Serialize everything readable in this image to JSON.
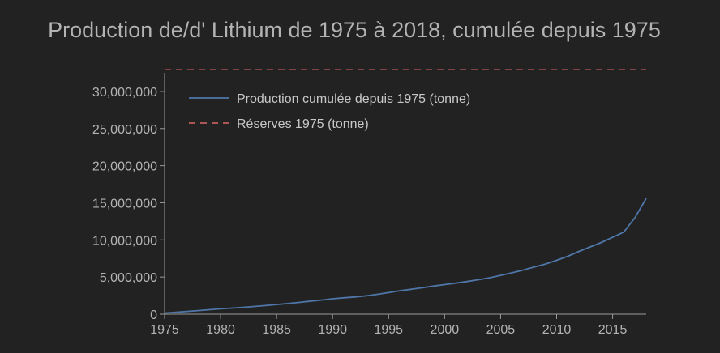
{
  "chart_data": {
    "type": "line",
    "title": "Production de/d' Lithium de 1975 à 2018, cumulée depuis 1975",
    "xlabel": "",
    "ylabel": "",
    "xlim": [
      1975,
      2018
    ],
    "ylim": [
      0,
      32500000
    ],
    "x_ticks": [
      1975,
      1980,
      1985,
      1990,
      1995,
      2000,
      2005,
      2010,
      2015
    ],
    "y_ticks": [
      0,
      5000000,
      10000000,
      15000000,
      20000000,
      25000000,
      30000000
    ],
    "y_tick_labels": [
      "0",
      "5,000,000",
      "10,000,000",
      "15,000,000",
      "20,000,000",
      "25,000,000",
      "30,000,000"
    ],
    "grid": false,
    "legend_position": "top-left",
    "series": [
      {
        "name": "Production cumulée depuis 1975 (tonne)",
        "style": "solid",
        "color": "#4f76a8",
        "x": [
          1975,
          1976,
          1977,
          1978,
          1979,
          1980,
          1981,
          1982,
          1983,
          1984,
          1985,
          1986,
          1987,
          1988,
          1989,
          1990,
          1991,
          1992,
          1993,
          1994,
          1995,
          1996,
          1997,
          1998,
          1999,
          2000,
          2001,
          2002,
          2003,
          2004,
          2005,
          2006,
          2007,
          2008,
          2009,
          2010,
          2011,
          2012,
          2013,
          2014,
          2015,
          2016,
          2017,
          2018
        ],
        "values": [
          150000,
          260000,
          370000,
          480000,
          600000,
          720000,
          820000,
          920000,
          1040000,
          1160000,
          1300000,
          1430000,
          1580000,
          1740000,
          1900000,
          2070000,
          2200000,
          2310000,
          2470000,
          2670000,
          2900000,
          3150000,
          3350000,
          3560000,
          3780000,
          3980000,
          4180000,
          4400000,
          4640000,
          4900000,
          5220000,
          5560000,
          5930000,
          6350000,
          6750000,
          7250000,
          7800000,
          8450000,
          9050000,
          9650000,
          10350000,
          11050000,
          13000000,
          15600000
        ]
      },
      {
        "name": "Réserves 1975 (tonne)",
        "style": "dashed",
        "color": "#e06666",
        "x": [
          1975,
          2018
        ],
        "values": [
          32900000,
          32900000
        ]
      }
    ]
  }
}
